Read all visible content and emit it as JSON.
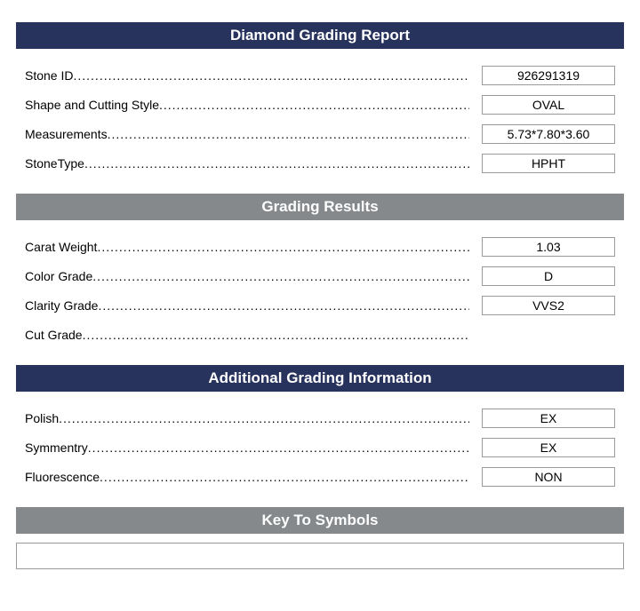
{
  "colors": {
    "header_primary_bg": "#27335d",
    "header_secondary_bg": "#85898c",
    "header_text": "#ffffff",
    "body_text": "#000000",
    "box_border": "#9a9a9a",
    "page_bg": "#ffffff"
  },
  "fonts": {
    "header_size_pt": 17,
    "body_size_pt": 14,
    "header_weight": "bold"
  },
  "sections": {
    "main": {
      "title": "Diamond Grading Report",
      "rows": [
        {
          "label": "Stone ID",
          "value": "926291319"
        },
        {
          "label": "Shape and Cutting Style",
          "value": "OVAL"
        },
        {
          "label": "Measurements",
          "value": "5.73*7.80*3.60"
        },
        {
          "label": "StoneType",
          "value": "HPHT"
        }
      ]
    },
    "grading": {
      "title": "Grading Results",
      "rows": [
        {
          "label": "Carat Weight",
          "value": "1.03"
        },
        {
          "label": "Color Grade",
          "value": "D"
        },
        {
          "label": "Clarity Grade",
          "value": "VVS2"
        },
        {
          "label": "Cut Grade",
          "value": ""
        }
      ]
    },
    "additional": {
      "title": "Additional Grading Information",
      "rows": [
        {
          "label": "Polish",
          "value": "EX"
        },
        {
          "label": "Symmentry",
          "value": "EX"
        },
        {
          "label": "Fluorescence",
          "value": "NON"
        }
      ]
    },
    "key": {
      "title": "Key To Symbols"
    }
  }
}
